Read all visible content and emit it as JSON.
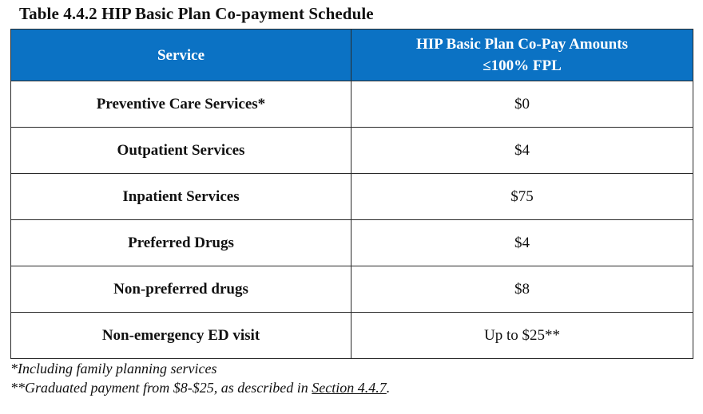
{
  "caption": "Table 4.4.2 HIP Basic Plan Co-payment Schedule",
  "table": {
    "headers": {
      "service": "Service",
      "amount_line1": "HIP Basic Plan Co-Pay Amounts",
      "amount_line2": "≤100% FPL"
    },
    "rows": [
      {
        "service": "Preventive Care Services*",
        "amount": "$0"
      },
      {
        "service": "Outpatient Services",
        "amount": "$4"
      },
      {
        "service": "Inpatient Services",
        "amount": "$75"
      },
      {
        "service": "Preferred Drugs",
        "amount": "$4"
      },
      {
        "service": "Non-preferred drugs",
        "amount": "$8"
      },
      {
        "service": "Non-emergency ED visit",
        "amount": "Up to $25**"
      }
    ]
  },
  "footnotes": {
    "note1": "*Including family planning services",
    "note2_prefix": "**Graduated payment from $8-$25, as described in ",
    "note2_link": "Section 4.4.7",
    "note2_suffix": "."
  },
  "colors": {
    "header_bg": "#0b72c4",
    "header_text": "#ffffff",
    "border": "#2a2a2a"
  }
}
